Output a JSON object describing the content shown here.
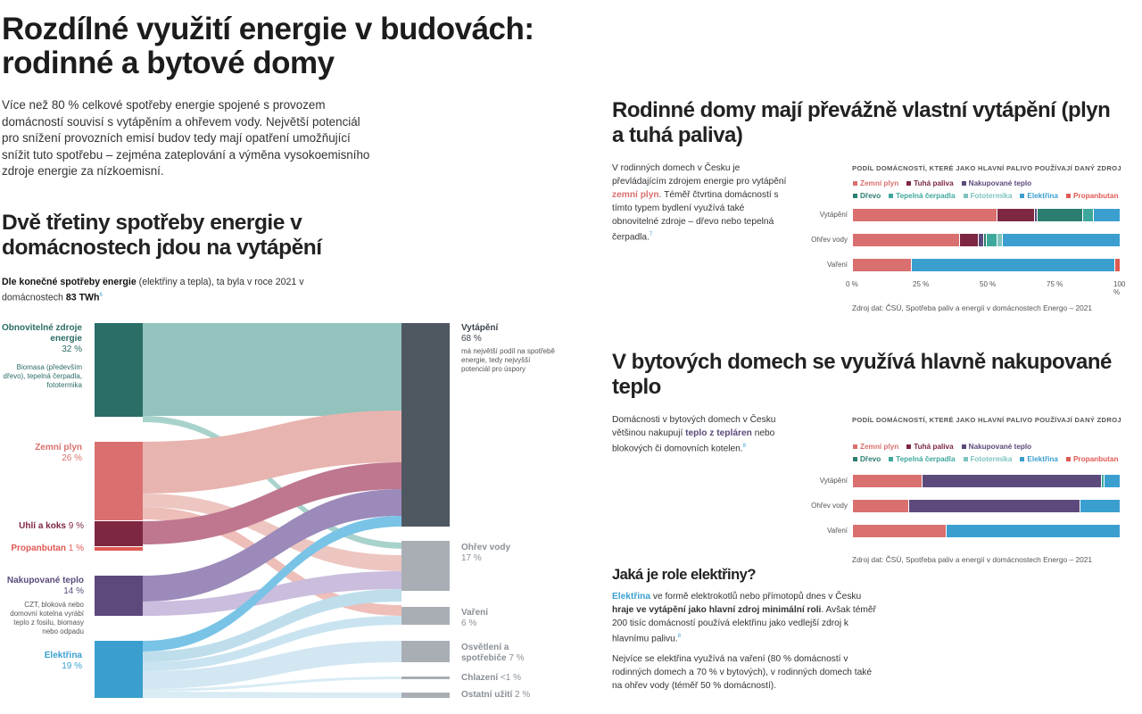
{
  "main_title": "Rozdílné využití energie v budovách: rodinné a bytové domy",
  "intro": "Více než 80 % celkové spotřeby energie spojené s provozem domácností souvisí s vytápěním a ohřevem vody. Největší potenciál pro snížení provozních emisí budov tedy mají opatření umožňující snížit tuto spotřebu – zejména zateplování a výměna vysokoemisního zdroje energie za nízkoemisní.",
  "section1": {
    "title": "Dvě třetiny spotřeby energie v domácnostech jdou na vytápění",
    "note_bold": "Dle konečné spotřeby energie",
    "note_rest": " (elektřiny a tepla), ta byla v roce 2021 v domácnostech ",
    "note_value": "83 TWh",
    "note_ref": "6"
  },
  "sankey": {
    "sources": [
      {
        "name": "Obnovitelné zdroje energie",
        "pct": "32 %",
        "note": "Biomasa (především dřevo), tepelná čerpadla, fototermika",
        "color": "#2b6d67",
        "text_color": "#2b6d67"
      },
      {
        "name": "Zemní plyn",
        "pct": "26 %",
        "note": "",
        "color": "#d9706f",
        "text_color": "#d9706f"
      },
      {
        "name": "Uhlí a koks",
        "pct": "9 %",
        "note": "",
        "color": "#7d2740",
        "text_color": "#7d2740"
      },
      {
        "name": "Propanbutan",
        "pct": "1 %",
        "note": "",
        "color": "#e05a54",
        "text_color": "#e05a54"
      },
      {
        "name": "Nakupované teplo",
        "pct": "14 %",
        "note": "CZT, bloková nebo domovní kotelna vyrábí teplo z fosilu, biomasy nebo odpadu",
        "color": "#5c4a7c",
        "text_color": "#5c4a7c"
      },
      {
        "name": "Elektřina",
        "pct": "19 %",
        "note": "",
        "color": "#3a9fcf",
        "text_color": "#3a9fcf"
      }
    ],
    "targets": [
      {
        "name": "Vytápění",
        "pct": "68 %",
        "note": "má největší podíl na spotřebě energie, tedy nejvyšší potenciál pro úspory"
      },
      {
        "name": "Ohřev vody",
        "pct": "17 %"
      },
      {
        "name": "Vaření",
        "pct": "6 %"
      },
      {
        "name": "Osvětlení a spotřebiče",
        "pct": "7 %"
      },
      {
        "name": "Chlazení",
        "pct": "<1 %"
      },
      {
        "name": "Ostatní užití",
        "pct": "2 %"
      }
    ]
  },
  "section2": {
    "title": "Rodinné domy mají převážně vlastní vytápění (plyn a tuhá paliva)",
    "text_before": "V rodinných domech v Česku je převládajícím zdrojem energie pro vytápění ",
    "text_highlight": "zemní plyn",
    "text_after": ". Téměř čtvrtina domácností s tímto typem bydlení využívá také obnovitelné zdroje – dřevo nebo tepelná čerpadla.",
    "ref": "7",
    "chart_head": "PODÍL DOMÁCNOSTÍ, KTERÉ JAKO HLAVNÍ PALIVO POUŽÍVAJÍ DANÝ ZDROJ",
    "source": "Zdroj dat: ČSÚ, Spotřeba paliv a energií v domácnostech Energo – 2021"
  },
  "section3": {
    "title": "V bytových domech se využívá hlavně nakupované teplo",
    "text_before": "Domácnosti v bytových domech v Česku většinou nakupují ",
    "text_highlight": "teplo z tepláren",
    "text_after": " nebo blokových či domovních kotelen.",
    "ref": "8",
    "chart_head": "PODÍL DOMÁCNOSTÍ, KTERÉ JAKO HLAVNÍ PALIVO POUŽÍVAJÍ DANÝ ZDROJ",
    "source": "Zdroj dat: ČSÚ, Spotřeba paliv a energií v domácnostech Energo – 2021"
  },
  "section4": {
    "title": "Jaká je role elektřiny?",
    "p1_hl": "Elektřina",
    "p1_a": " ve formě elektrokotlů nebo přímotopů dnes v Česku ",
    "p1_b": "hraje ve vytápění jako hlavní zdroj minimální roli",
    "p1_c": ". Avšak téměř 200 tisíc domácností používá elektřinu jako vedlejší zdroj k hlavnímu palivu.",
    "ref": "8",
    "p2": "Nejvíce se elektřina využívá na vaření (80 % domácností v rodinných domech a 70 % v bytových), v rodinných domech také na ohřev vody (téměř 50 % domácností)."
  },
  "legend": [
    {
      "name": "Zemní plyn",
      "color": "#d9706f"
    },
    {
      "name": "Tuhá paliva",
      "color": "#7d2740"
    },
    {
      "name": "Nakupované teplo",
      "color": "#5c4a7c"
    },
    {
      "name": "Dřevo",
      "color": "#2b7d70"
    },
    {
      "name": "Tepelná čerpadla",
      "color": "#3fa89c"
    },
    {
      "name": "Fototermika",
      "color": "#7fc4bf"
    },
    {
      "name": "Elektřina",
      "color": "#3a9fcf"
    },
    {
      "name": "Propanbutan",
      "color": "#e05a54"
    }
  ],
  "chart_data": [
    {
      "type": "bar",
      "orientation": "horizontal-stacked",
      "title": "PODÍL DOMÁCNOSTÍ, KTERÉ JAKO HLAVNÍ PALIVO POUŽÍVAJÍ DANÝ ZDROJ",
      "categories": [
        "Vytápění",
        "Ohřev vody",
        "Vaření"
      ],
      "x_ticks": [
        "0 %",
        "25 %",
        "50 %",
        "75 %",
        "100 %"
      ],
      "xlim": [
        0,
        100
      ],
      "series": [
        {
          "name": "Zemní plyn",
          "values": [
            54,
            40,
            22
          ]
        },
        {
          "name": "Tuhá paliva",
          "values": [
            14,
            7,
            0
          ]
        },
        {
          "name": "Nakupované teplo",
          "values": [
            1,
            2,
            0
          ]
        },
        {
          "name": "Dřevo",
          "values": [
            17,
            1,
            0
          ]
        },
        {
          "name": "Tepelná čerpadla",
          "values": [
            4,
            4,
            0
          ]
        },
        {
          "name": "Fototermika",
          "values": [
            0,
            2,
            0
          ]
        },
        {
          "name": "Elektřina",
          "values": [
            10,
            44,
            76
          ]
        },
        {
          "name": "Propanbutan",
          "values": [
            0,
            0,
            2
          ]
        }
      ]
    },
    {
      "type": "bar",
      "orientation": "horizontal-stacked",
      "title": "PODÍL DOMÁCNOSTÍ, KTERÉ JAKO HLAVNÍ PALIVO POUŽÍVAJÍ DANÝ ZDROJ",
      "categories": [
        "Vytápění",
        "Ohřev vody",
        "Vaření"
      ],
      "xlim": [
        0,
        100
      ],
      "series": [
        {
          "name": "Zemní plyn",
          "values": [
            26,
            21,
            35
          ]
        },
        {
          "name": "Tuhá paliva",
          "values": [
            0,
            0,
            0
          ]
        },
        {
          "name": "Nakupované teplo",
          "values": [
            67,
            64,
            0
          ]
        },
        {
          "name": "Dřevo",
          "values": [
            0,
            0,
            0
          ]
        },
        {
          "name": "Tepelná čerpadla",
          "values": [
            1,
            0,
            0
          ]
        },
        {
          "name": "Fototermika",
          "values": [
            0,
            0,
            0
          ]
        },
        {
          "name": "Elektřina",
          "values": [
            6,
            15,
            65
          ]
        },
        {
          "name": "Propanbutan",
          "values": [
            0,
            0,
            0
          ]
        }
      ]
    }
  ]
}
